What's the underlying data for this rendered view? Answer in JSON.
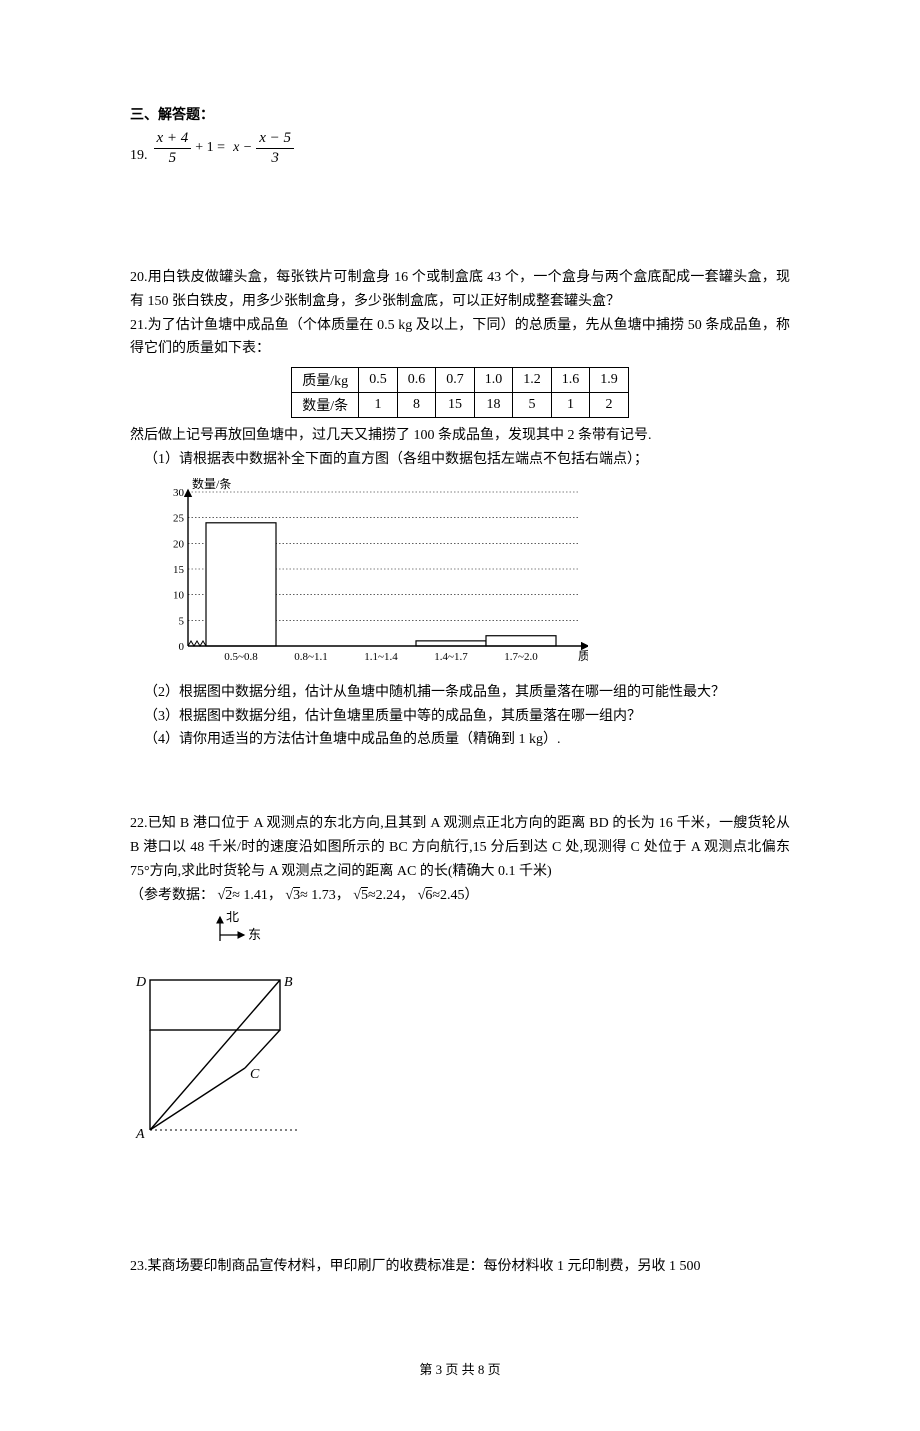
{
  "section_title": "三、解答题：",
  "q19": {
    "num": "19.",
    "frac1_num": "x + 4",
    "frac1_den": "5",
    "plus": "+ 1 =",
    "mid": "x −",
    "frac2_num": "x − 5",
    "frac2_den": "3"
  },
  "q20": {
    "text": "20.用白铁皮做罐头盒，每张铁片可制盒身 16 个或制盒底 43 个，一个盒身与两个盒底配成一套罐头盒，现有 150 张白铁皮，用多少张制盒身，多少张制盒底，可以正好制成整套罐头盒？"
  },
  "q21": {
    "intro": "21.为了估计鱼塘中成品鱼（个体质量在 0.5 kg 及以上，下同）的总质量，先从鱼塘中捕捞 50 条成品鱼，称得它们的质量如下表：",
    "table": {
      "header_label": "质量/kg",
      "row_label": "数量/条",
      "cols": [
        "0.5",
        "0.6",
        "0.7",
        "1.0",
        "1.2",
        "1.6",
        "1.9"
      ],
      "vals": [
        "1",
        "8",
        "15",
        "18",
        "5",
        "1",
        "2"
      ]
    },
    "after_table": "然后做上记号再放回鱼塘中，过几天又捕捞了 100 条成品鱼，发现其中 2 条带有记号.",
    "sub1": "（1）请根据表中数据补全下面的直方图（各组中数据包括左端点不包括右端点）；",
    "sub2": "（2）根据图中数据分组，估计从鱼塘中随机捕一条成品鱼，其质量落在哪一组的可能性最大？",
    "sub3": "（3）根据图中数据分组，估计鱼塘里质量中等的成品鱼，其质量落在哪一组内？",
    "sub4": "（4）请你用适当的方法估计鱼塘中成品鱼的总质量（精确到 1 kg）.",
    "histogram": {
      "y_label": "数量/条",
      "x_label": "质量/kg",
      "y_ticks": [
        0,
        5,
        10,
        15,
        20,
        25,
        30
      ],
      "bins": [
        "0.5~0.8",
        "0.8~1.1",
        "1.1~1.4",
        "1.4~1.7",
        "1.7~2.0"
      ],
      "bar_values": [
        24,
        0,
        0,
        1,
        2
      ],
      "bar_color": "#ffffff",
      "bar_border": "#000000",
      "axis_color": "#000000",
      "grid_color": "#000000",
      "y_max": 30,
      "font_size_axis": 11
    }
  },
  "q22": {
    "text": "22.已知 B 港口位于 A 观测点的东北方向,且其到 A 观测点正北方向的距离 BD 的长为 16 千米，一艘货轮从 B 港口以 48 千米/时的速度沿如图所示的 BC 方向航行,15 分后到达 C 处,现测得 C 处位于 A 观测点北偏东 75°方向,求此时货轮与 A 观测点之间的距离 AC 的长(精确大 0.1 千米)",
    "ref": "（参考数据：",
    "s2": "≈ 1.41，",
    "s3": "≈ 1.73，",
    "s5": "≈2.24，",
    "s6": "≈2.45）",
    "compass": {
      "north": "北",
      "east": "东"
    },
    "diagram": {
      "D": "D",
      "B": "B",
      "C": "C",
      "A": "A",
      "stroke": "#000000"
    }
  },
  "q23": {
    "text": "23.某商场要印制商品宣传材料，甲印刷厂的收费标准是：每份材料收 1 元印制费，另收 1 500"
  },
  "footer": "第 3 页 共 8 页"
}
